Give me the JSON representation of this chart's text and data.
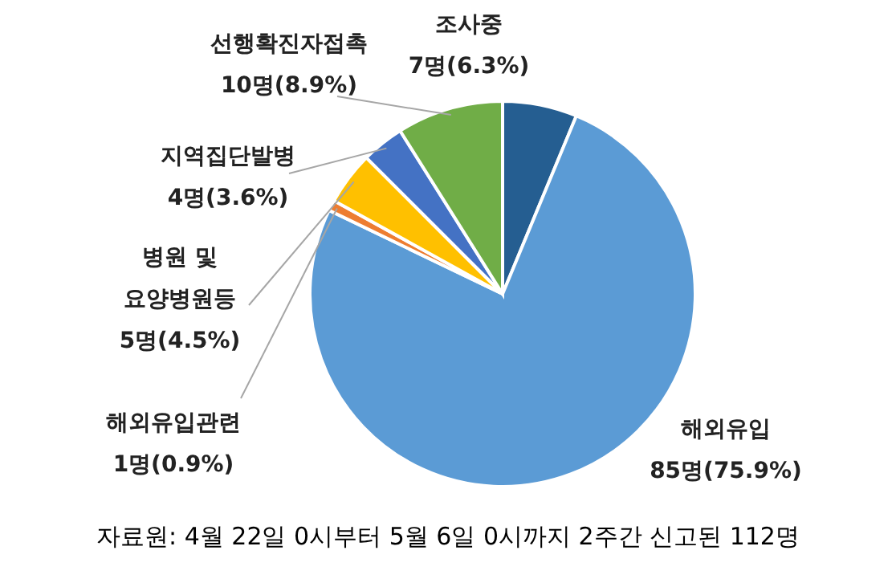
{
  "chart_data": {
    "type": "pie",
    "categories": [
      "조사중",
      "해외유입",
      "해외유입관련",
      "병원 및 요양병원등",
      "지역집단발병",
      "선행확진자접촉"
    ],
    "values": [
      7,
      85,
      1,
      5,
      4,
      10
    ],
    "value_labels": [
      "7명(6.3%)",
      "85명(75.9%)",
      "1명(0.9%)",
      "5명(4.5%)",
      "4명(3.6%)",
      "10명(8.9%)"
    ],
    "colors": [
      "#255e91",
      "#5b9bd5",
      "#ed7d31",
      "#ffc000",
      "#4472c4",
      "#70ad47"
    ],
    "annotations": [
      "자료원: 4월 22일 0시부터 5월 6일 0시까지 2주간 신고된 112명"
    ]
  }
}
